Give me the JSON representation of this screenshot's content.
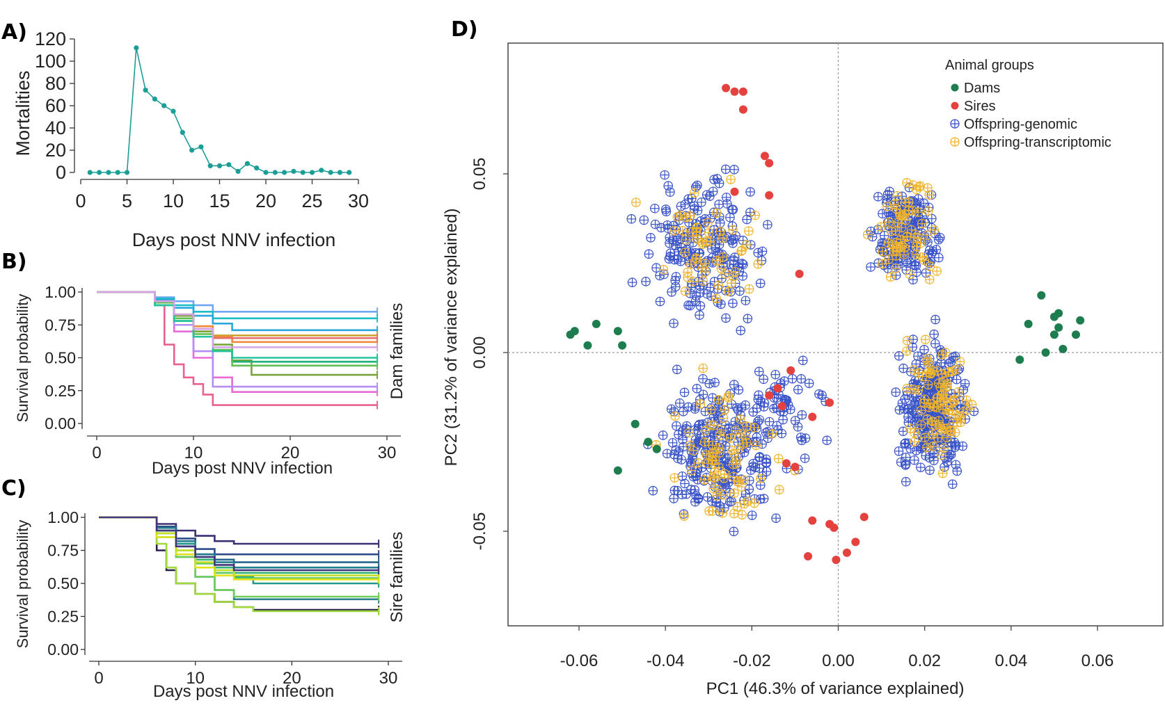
{
  "panels": {
    "a": "A)",
    "b": "B)",
    "c": "C)",
    "d": "D)"
  },
  "colors": {
    "mortality": "#1b9e96",
    "dams": "#1e7d4e",
    "sires": "#e5413f",
    "offspring_genomic": "#3953c7",
    "offspring_transcriptomic": "#f0b429"
  },
  "chart_data": [
    {
      "id": "A",
      "type": "line",
      "xlabel": "Days post NNV infection",
      "ylabel": "Mortalities",
      "xlim": [
        0,
        30
      ],
      "ylim": [
        0,
        120
      ],
      "xticks": [
        0,
        5,
        10,
        15,
        20,
        25,
        30
      ],
      "yticks": [
        0,
        20,
        40,
        60,
        80,
        100,
        120
      ],
      "x": [
        1,
        2,
        3,
        4,
        5,
        6,
        7,
        8,
        9,
        10,
        11,
        12,
        13,
        14,
        15,
        16,
        17,
        18,
        19,
        20,
        21,
        22,
        23,
        24,
        25,
        26,
        27,
        28,
        29
      ],
      "y": [
        0,
        0,
        0,
        0,
        0,
        112,
        74,
        66,
        60,
        55,
        36,
        20,
        23,
        6,
        6,
        7,
        1,
        8,
        4,
        0,
        0,
        0,
        1,
        0,
        0,
        2,
        0,
        0,
        0
      ]
    },
    {
      "id": "B",
      "type": "line",
      "subtype": "kaplan-meier",
      "xlabel": "Days post NNV infection",
      "ylabel": "Survival probability",
      "side_label": "Dam families",
      "xlim": [
        0,
        30
      ],
      "ylim": [
        0,
        1
      ],
      "xticks": [
        0,
        10,
        20,
        30
      ],
      "yticks": [
        "0.00",
        "0.25",
        "0.50",
        "0.75",
        "1.00"
      ],
      "series": [
        {
          "color": "#e8608e",
          "x": [
            0,
            6,
            7,
            8,
            9,
            10,
            11,
            12,
            29
          ],
          "y": [
            1,
            0.9,
            0.6,
            0.45,
            0.35,
            0.3,
            0.22,
            0.14,
            0.14
          ]
        },
        {
          "color": "#e86ad6",
          "x": [
            0,
            6,
            8,
            10,
            12,
            14,
            29
          ],
          "y": [
            1,
            0.92,
            0.7,
            0.5,
            0.35,
            0.24,
            0.24
          ]
        },
        {
          "color": "#b38cf5",
          "x": [
            0,
            6,
            8,
            10,
            12,
            29
          ],
          "y": [
            1,
            0.92,
            0.75,
            0.55,
            0.28,
            0.28
          ]
        },
        {
          "color": "#6fa8f2",
          "x": [
            0,
            6,
            8,
            10,
            12,
            29
          ],
          "y": [
            1,
            0.96,
            0.93,
            0.9,
            0.85,
            0.85
          ]
        },
        {
          "color": "#1cc0c4",
          "x": [
            0,
            6,
            8,
            10,
            12,
            29
          ],
          "y": [
            1,
            0.95,
            0.9,
            0.85,
            0.8,
            0.8
          ]
        },
        {
          "color": "#2aa7df",
          "x": [
            0,
            6,
            8,
            10,
            12,
            14,
            29
          ],
          "y": [
            1,
            0.94,
            0.88,
            0.82,
            0.76,
            0.71,
            0.71
          ]
        },
        {
          "color": "#c8a02a",
          "x": [
            0,
            6,
            8,
            10,
            12,
            29
          ],
          "y": [
            1,
            0.93,
            0.83,
            0.74,
            0.67,
            0.67
          ]
        },
        {
          "color": "#ef8a3a",
          "x": [
            0,
            6,
            8,
            10,
            12,
            14,
            29
          ],
          "y": [
            1,
            0.92,
            0.82,
            0.74,
            0.66,
            0.62,
            0.62
          ]
        },
        {
          "color": "#7aa33a",
          "x": [
            0,
            6,
            8,
            10,
            12,
            14,
            16,
            29
          ],
          "y": [
            1,
            0.92,
            0.82,
            0.7,
            0.6,
            0.48,
            0.37,
            0.37
          ]
        },
        {
          "color": "#21b07a",
          "x": [
            0,
            6,
            8,
            10,
            12,
            14,
            29
          ],
          "y": [
            1,
            0.9,
            0.78,
            0.66,
            0.56,
            0.47,
            0.47
          ]
        },
        {
          "color": "#5fbf52",
          "x": [
            0,
            6,
            8,
            10,
            12,
            14,
            29
          ],
          "y": [
            1,
            0.92,
            0.8,
            0.68,
            0.56,
            0.44,
            0.44
          ]
        },
        {
          "color": "#24c39c",
          "x": [
            0,
            6,
            8,
            10,
            12,
            14,
            29
          ],
          "y": [
            1,
            0.9,
            0.78,
            0.66,
            0.55,
            0.5,
            0.5
          ]
        },
        {
          "color": "#e36f6f",
          "x": [
            0,
            6,
            8,
            10,
            12,
            29
          ],
          "y": [
            1,
            0.93,
            0.83,
            0.72,
            0.65,
            0.65
          ]
        },
        {
          "color": "#d5a4e8",
          "x": [
            0,
            6,
            8,
            10,
            12,
            29
          ],
          "y": [
            1,
            0.93,
            0.83,
            0.72,
            0.58,
            0.58
          ]
        }
      ]
    },
    {
      "id": "C",
      "type": "line",
      "subtype": "kaplan-meier",
      "xlabel": "Days post NNV infection",
      "ylabel": "Survival probability",
      "side_label": "Sire families",
      "xlim": [
        0,
        30
      ],
      "ylim": [
        0,
        1
      ],
      "xticks": [
        0,
        10,
        20,
        30
      ],
      "yticks": [
        "0.00",
        "0.25",
        "0.50",
        "0.75",
        "1.00"
      ],
      "series": [
        {
          "color": "#3b2f73",
          "x": [
            0,
            6,
            8,
            10,
            12,
            14,
            29
          ],
          "y": [
            1,
            0.95,
            0.9,
            0.86,
            0.82,
            0.8,
            0.8
          ]
        },
        {
          "color": "#2e4a8a",
          "x": [
            0,
            6,
            8,
            10,
            12,
            29
          ],
          "y": [
            1,
            0.93,
            0.84,
            0.76,
            0.72,
            0.72
          ]
        },
        {
          "color": "#27658c",
          "x": [
            0,
            6,
            8,
            10,
            12,
            14,
            29
          ],
          "y": [
            1,
            0.9,
            0.8,
            0.72,
            0.68,
            0.66,
            0.66
          ]
        },
        {
          "color": "#1f7d8c",
          "x": [
            0,
            6,
            8,
            10,
            12,
            14,
            29
          ],
          "y": [
            1,
            0.92,
            0.82,
            0.72,
            0.66,
            0.62,
            0.62
          ]
        },
        {
          "color": "#23998a",
          "x": [
            0,
            6,
            8,
            10,
            12,
            14,
            16,
            29
          ],
          "y": [
            1,
            0.9,
            0.8,
            0.7,
            0.62,
            0.55,
            0.5,
            0.5
          ]
        },
        {
          "color": "#35b37a",
          "x": [
            0,
            6,
            8,
            10,
            12,
            14,
            29
          ],
          "y": [
            1,
            0.9,
            0.78,
            0.68,
            0.62,
            0.58,
            0.58
          ]
        },
        {
          "color": "#5dc863",
          "x": [
            0,
            6,
            8,
            10,
            12,
            14,
            29
          ],
          "y": [
            1,
            0.88,
            0.75,
            0.65,
            0.58,
            0.54,
            0.54
          ]
        },
        {
          "color": "#2a1e4f",
          "x": [
            0,
            6,
            7,
            8,
            10,
            12,
            14,
            16,
            29
          ],
          "y": [
            1,
            0.75,
            0.6,
            0.5,
            0.42,
            0.36,
            0.32,
            0.3,
            0.3
          ]
        },
        {
          "color": "#2c7f8e",
          "x": [
            0,
            6,
            8,
            10,
            12,
            14,
            29
          ],
          "y": [
            1,
            0.88,
            0.7,
            0.55,
            0.45,
            0.38,
            0.38
          ]
        },
        {
          "color": "#6ece58",
          "x": [
            0,
            6,
            8,
            10,
            12,
            14,
            29
          ],
          "y": [
            1,
            0.85,
            0.7,
            0.55,
            0.45,
            0.4,
            0.4
          ]
        },
        {
          "color": "#9fda3a",
          "x": [
            0,
            6,
            7,
            8,
            10,
            12,
            14,
            16,
            29
          ],
          "y": [
            1,
            0.8,
            0.62,
            0.5,
            0.42,
            0.36,
            0.32,
            0.29,
            0.29
          ]
        },
        {
          "color": "#dfe318",
          "x": [
            0,
            6,
            8,
            10,
            12,
            14,
            29
          ],
          "y": [
            1,
            0.85,
            0.72,
            0.62,
            0.56,
            0.53,
            0.53
          ]
        },
        {
          "color": "#c2df23",
          "x": [
            0,
            6,
            8,
            10,
            12,
            14,
            29
          ],
          "y": [
            1,
            0.88,
            0.75,
            0.66,
            0.6,
            0.56,
            0.56
          ]
        },
        {
          "color": "#46337e",
          "x": [
            0,
            6,
            8,
            10,
            12,
            14,
            29
          ],
          "y": [
            1,
            0.9,
            0.78,
            0.7,
            0.64,
            0.6,
            0.6
          ]
        }
      ]
    },
    {
      "id": "D",
      "type": "scatter",
      "xlabel": "PC1 (46.3% of variance explained)",
      "ylabel": "PC2 (31.2% of variance explained)",
      "xlim": [
        -0.075,
        0.075
      ],
      "ylim": [
        -0.076,
        0.092
      ],
      "xticks": [
        "-0.06",
        "-0.04",
        "-0.02",
        "0.00",
        "0.02",
        "0.04",
        "0.06"
      ],
      "yticks": [
        "-0.05",
        "0.00",
        "0.05"
      ],
      "reference_lines": {
        "x": 0,
        "y": 0
      },
      "legend": {
        "title": "Animal groups",
        "position": "top-right"
      },
      "series": [
        {
          "name": "Dams",
          "marker": "filled-circle",
          "points": [
            [
              -0.062,
              0.005
            ],
            [
              -0.061,
              0.006
            ],
            [
              -0.056,
              0.008
            ],
            [
              -0.058,
              0.002
            ],
            [
              -0.051,
              0.006
            ],
            [
              -0.05,
              0.002
            ],
            [
              -0.047,
              -0.02
            ],
            [
              -0.051,
              -0.033
            ],
            [
              -0.044,
              -0.025
            ],
            [
              -0.042,
              -0.027
            ],
            [
              0.042,
              -0.002
            ],
            [
              0.047,
              0.016
            ],
            [
              0.044,
              0.008
            ],
            [
              0.05,
              0.01
            ],
            [
              0.051,
              0.007
            ],
            [
              0.05,
              0.005
            ],
            [
              0.056,
              0.009
            ],
            [
              0.052,
              0.001
            ],
            [
              0.048,
              0.0
            ],
            [
              0.055,
              0.005
            ],
            [
              0.051,
              0.011
            ]
          ]
        },
        {
          "name": "Sires",
          "marker": "filled-circle",
          "points": [
            [
              -0.026,
              0.074
            ],
            [
              -0.024,
              0.073
            ],
            [
              -0.022,
              0.073
            ],
            [
              -0.022,
              0.068
            ],
            [
              -0.017,
              0.055
            ],
            [
              -0.016,
              0.053
            ],
            [
              -0.024,
              0.045
            ],
            [
              -0.016,
              0.044
            ],
            [
              -0.009,
              0.022
            ],
            [
              -0.011,
              -0.005
            ],
            [
              -0.016,
              -0.012
            ],
            [
              -0.014,
              -0.01
            ],
            [
              -0.013,
              -0.015
            ],
            [
              -0.006,
              -0.018
            ],
            [
              -0.002,
              -0.014
            ],
            [
              -0.012,
              -0.031
            ],
            [
              -0.01,
              -0.032
            ],
            [
              -0.006,
              -0.047
            ],
            [
              -0.002,
              -0.048
            ],
            [
              -0.001,
              -0.049
            ],
            [
              0.006,
              -0.046
            ],
            [
              0.004,
              -0.053
            ],
            [
              0.002,
              -0.056
            ],
            [
              -0.007,
              -0.057
            ],
            [
              -0.0005,
              -0.058
            ]
          ]
        },
        {
          "name": "Offspring-genomic",
          "marker": "crossed-circle",
          "clusters": [
            {
              "cx": -0.031,
              "cy": 0.029,
              "sx": 0.0085,
              "sy": 0.012,
              "n": 190
            },
            {
              "cx": -0.028,
              "cy": -0.028,
              "sx": 0.0085,
              "sy": 0.012,
              "n": 230
            },
            {
              "cx": -0.013,
              "cy": -0.017,
              "sx": 0.006,
              "sy": 0.01,
              "n": 55
            },
            {
              "cx": 0.016,
              "cy": 0.033,
              "sx": 0.0045,
              "sy": 0.009,
              "n": 160
            },
            {
              "cx": 0.022,
              "cy": -0.015,
              "sx": 0.0048,
              "sy": 0.011,
              "n": 260
            }
          ]
        },
        {
          "name": "Offspring-transcriptomic",
          "marker": "crossed-circle",
          "clusters": [
            {
              "cx": -0.031,
              "cy": 0.028,
              "sx": 0.0085,
              "sy": 0.011,
              "n": 55
            },
            {
              "cx": -0.027,
              "cy": -0.03,
              "sx": 0.008,
              "sy": 0.012,
              "n": 80
            },
            {
              "cx": 0.016,
              "cy": 0.035,
              "sx": 0.0045,
              "sy": 0.009,
              "n": 65
            },
            {
              "cx": 0.023,
              "cy": -0.013,
              "sx": 0.0048,
              "sy": 0.011,
              "n": 90
            }
          ]
        }
      ]
    }
  ]
}
